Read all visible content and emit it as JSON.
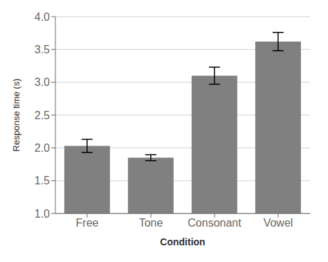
{
  "chart_data": {
    "type": "bar",
    "categories": [
      "Free",
      "Tone",
      "Consonant",
      "Vowel"
    ],
    "values": [
      2.03,
      1.85,
      3.1,
      3.62
    ],
    "errors": [
      0.1,
      0.045,
      0.13,
      0.14
    ],
    "color": "#808080",
    "xlabel": "Condition",
    "ylabel": "Response time (s)",
    "ylim": [
      1.0,
      4.0
    ],
    "yticks": [
      {
        "value": 1.0,
        "label": "1.0"
      },
      {
        "value": 1.5,
        "label": "1.5"
      },
      {
        "value": 2.0,
        "label": "2.0"
      },
      {
        "value": 2.5,
        "label": "2.5"
      },
      {
        "value": 3.0,
        "label": "3.0"
      },
      {
        "value": 3.5,
        "label": "3.5"
      },
      {
        "value": 4.0,
        "label": "4.0"
      }
    ],
    "grid": true
  }
}
